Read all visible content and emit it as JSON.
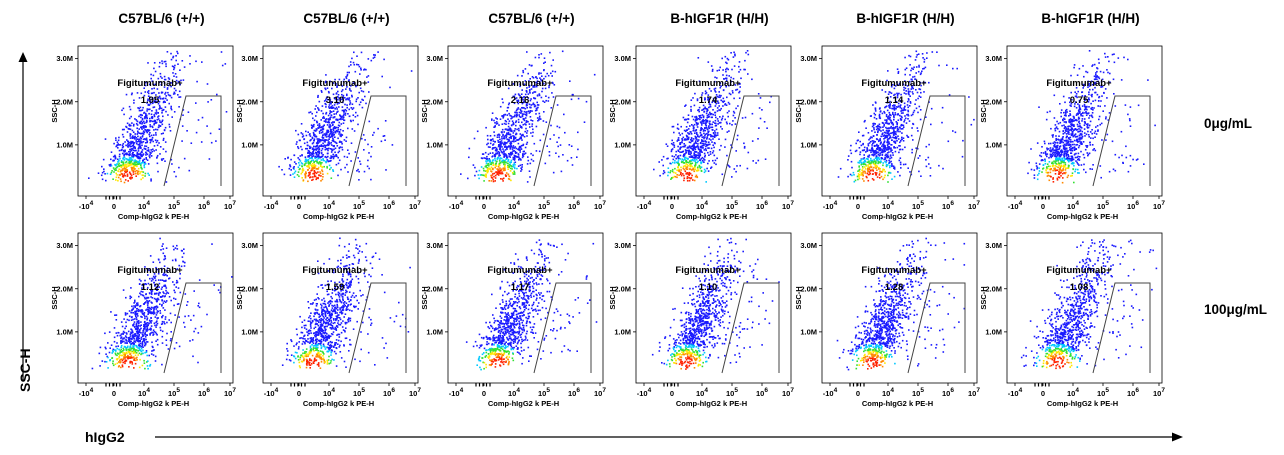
{
  "figure": {
    "y_axis_label": "SSC-H",
    "x_axis_label": "hIgG2",
    "row_labels": [
      "0μg/mL",
      "100μg/mL"
    ],
    "column_headers": [
      "C57BL/6 (+/+)",
      "C57BL/6 (+/+)",
      "C57BL/6 (+/+)",
      "B-hIGF1R (H/H)",
      "B-hIGF1R (H/H)",
      "B-hIGF1R (H/H)"
    ]
  },
  "panel_axes": {
    "xlabel": "Comp-hIgG2 k PE-H",
    "ylabel": "SSC-H",
    "y_ticks": [
      "1.0M",
      "2.0M",
      "3.0M"
    ],
    "x_ticks": [
      "-10^4",
      "0",
      "10^4",
      "10^5",
      "10^6",
      "10^7"
    ],
    "gate_name": "Figitumumab+"
  },
  "colors": {
    "density_low": "#1a1aff",
    "density_mid": "#00c8ff",
    "density_mid2": "#33e033",
    "density_high": "#ffe600",
    "density_peak": "#ff2200",
    "gate_line": "#444444"
  },
  "chart_data": {
    "type": "scatter",
    "subtype": "flow-cytometry-density-plot-grid",
    "rows": [
      "0μg/mL",
      "100μg/mL"
    ],
    "columns": [
      "C57BL/6 (+/+)",
      "C57BL/6 (+/+)",
      "C57BL/6 (+/+)",
      "B-hIGF1R (H/H)",
      "B-hIGF1R (H/H)",
      "B-hIGF1R (H/H)"
    ],
    "gate": "Figitumumab+",
    "gate_percentages": [
      [
        1.95,
        3.1,
        2.16,
        1.74,
        1.14,
        0.75
      ],
      [
        1.12,
        1.59,
        1.17,
        1.1,
        1.28,
        1.08
      ]
    ],
    "xlabel": "Comp-hIgG2 k PE-H",
    "ylabel": "SSC-H",
    "x_scale": "biexponential",
    "ylim": [
      0,
      3200000
    ]
  }
}
